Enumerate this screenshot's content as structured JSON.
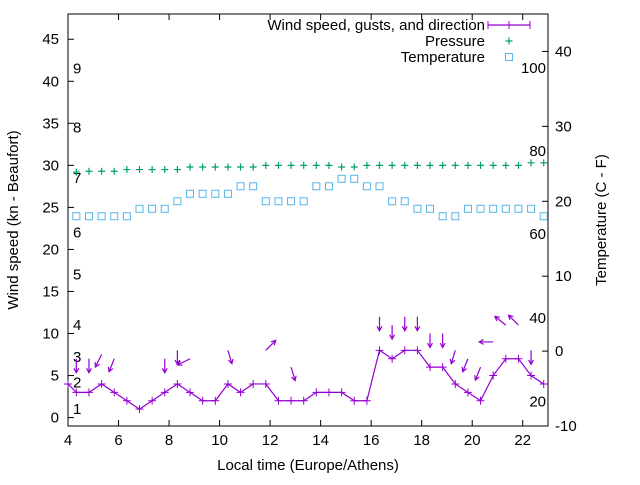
{
  "chart_data": {
    "type": "line",
    "xlabel": "Local time (Europe/Athens)",
    "ylabel": "Wind speed (kn - Beaufort)",
    "y2label": "Temperature (C - F)",
    "xlim": [
      4,
      23
    ],
    "ylim": [
      -1,
      48
    ],
    "y2lim": [
      -10,
      45
    ],
    "x_ticks": [
      4,
      6,
      8,
      10,
      12,
      14,
      16,
      18,
      20,
      22
    ],
    "y_ticks": [
      0,
      5,
      10,
      15,
      20,
      25,
      30,
      35,
      40,
      45
    ],
    "y2_ticks": [
      -10,
      0,
      10,
      20,
      30,
      40
    ],
    "beaufort_labels": [
      {
        "label": "1",
        "y": 1
      },
      {
        "label": "2",
        "y": 4.2
      },
      {
        "label": "3",
        "y": 7.2
      },
      {
        "label": "4",
        "y": 11
      },
      {
        "label": "5",
        "y": 17
      },
      {
        "label": "6",
        "y": 22
      },
      {
        "label": "7",
        "y": 28.5
      },
      {
        "label": "8",
        "y": 34.5
      },
      {
        "label": "9",
        "y": 41.5
      }
    ],
    "fahrenheit_labels": [
      {
        "label": "20",
        "y2": -6.7
      },
      {
        "label": "40",
        "y2": 4.4
      },
      {
        "label": "60",
        "y2": 15.6
      },
      {
        "label": "80",
        "y2": 26.7
      },
      {
        "label": "100",
        "y2": 37.8
      }
    ],
    "legend": {
      "position": "top-right",
      "entries": [
        "Wind speed, gusts, and direction",
        "Pressure",
        "Temperature"
      ]
    },
    "colors": {
      "wind": "#9400d3",
      "pressure": "#009e73",
      "temperature": "#56b4e9",
      "arrows": "#9400d3"
    },
    "series": [
      {
        "name": "Wind speed, gusts, and direction",
        "x": [
          4,
          4.33,
          4.83,
          5.33,
          5.83,
          6.33,
          6.83,
          7.33,
          7.83,
          8.33,
          8.83,
          9.33,
          9.83,
          10.33,
          10.83,
          11.33,
          11.83,
          12.33,
          12.83,
          13.33,
          13.83,
          14.33,
          14.83,
          15.33,
          15.83,
          16.33,
          16.83,
          17.33,
          17.83,
          18.33,
          18.83,
          19.33,
          19.83,
          20.33,
          20.83,
          21.33,
          21.83,
          22.33,
          22.83
        ],
        "values": [
          4,
          3,
          3,
          4,
          3,
          2,
          1,
          2,
          3,
          4,
          3,
          2,
          2,
          4,
          3,
          4,
          4,
          2,
          2,
          2,
          3,
          3,
          3,
          2,
          2,
          8,
          7,
          8,
          8,
          6,
          6,
          4,
          3,
          2,
          5,
          7,
          7,
          5,
          4
        ]
      },
      {
        "name": "Pressure",
        "x": [
          4.33,
          4.83,
          5.33,
          5.83,
          6.33,
          6.83,
          7.33,
          7.83,
          8.33,
          8.83,
          9.33,
          9.83,
          10.33,
          10.83,
          11.33,
          11.83,
          12.33,
          12.83,
          13.33,
          13.83,
          14.33,
          14.83,
          15.33,
          15.83,
          16.33,
          16.83,
          17.33,
          17.83,
          18.33,
          18.83,
          19.33,
          19.83,
          20.33,
          20.83,
          21.33,
          21.83,
          22.33,
          22.83
        ],
        "values": [
          29.2,
          29.3,
          29.3,
          29.3,
          29.5,
          29.5,
          29.5,
          29.5,
          29.5,
          29.8,
          29.8,
          29.8,
          29.8,
          29.8,
          29.8,
          30.0,
          30.0,
          30.0,
          30.0,
          30.0,
          30.0,
          29.8,
          29.8,
          30.0,
          30.0,
          30.0,
          30.0,
          30.0,
          30.0,
          30.0,
          30.0,
          30.0,
          30.0,
          30.0,
          30.0,
          30.0,
          30.3,
          30.3
        ]
      },
      {
        "name": "Temperature",
        "x": [
          4.33,
          4.83,
          5.33,
          5.83,
          6.33,
          6.83,
          7.33,
          7.83,
          8.33,
          8.83,
          9.33,
          9.83,
          10.33,
          10.83,
          11.33,
          11.83,
          12.33,
          12.83,
          13.33,
          13.83,
          14.33,
          14.83,
          15.33,
          15.83,
          16.33,
          16.83,
          17.33,
          17.83,
          18.33,
          18.83,
          19.33,
          19.83,
          20.33,
          20.83,
          21.33,
          21.83,
          22.33,
          22.83
        ],
        "values": [
          18,
          18,
          18,
          18,
          18,
          19,
          19,
          19,
          20,
          21,
          21,
          21,
          21,
          22,
          22,
          20,
          20,
          20,
          20,
          22,
          22,
          23,
          23,
          22,
          22,
          20,
          20,
          19,
          19,
          18,
          18,
          19,
          19,
          19,
          19,
          19,
          19,
          18
        ]
      }
    ],
    "wind_arrows": [
      {
        "x": 4.33,
        "y": 7,
        "dx": 0,
        "dy": -1
      },
      {
        "x": 4.83,
        "y": 7,
        "dx": 0,
        "dy": -1
      },
      {
        "x": 5.33,
        "y": 7.5,
        "dx": -0.5,
        "dy": -1
      },
      {
        "x": 5.83,
        "y": 7,
        "dx": -0.4,
        "dy": -1
      },
      {
        "x": 7.83,
        "y": 7,
        "dx": 0,
        "dy": -1
      },
      {
        "x": 8.33,
        "y": 8,
        "dx": 0,
        "dy": -1
      },
      {
        "x": 8.83,
        "y": 7,
        "dx": -1,
        "dy": -0.5
      },
      {
        "x": 10.33,
        "y": 8,
        "dx": 0.3,
        "dy": -1
      },
      {
        "x": 11.83,
        "y": 8,
        "dx": 1,
        "dy": 1
      },
      {
        "x": 12.83,
        "y": 6,
        "dx": 0.3,
        "dy": -1
      },
      {
        "x": 16.33,
        "y": 12,
        "dx": 0,
        "dy": -1
      },
      {
        "x": 16.83,
        "y": 11,
        "dx": 0,
        "dy": -1
      },
      {
        "x": 17.33,
        "y": 12,
        "dx": 0,
        "dy": -1
      },
      {
        "x": 17.83,
        "y": 12,
        "dx": 0,
        "dy": -1
      },
      {
        "x": 18.33,
        "y": 10,
        "dx": 0,
        "dy": -1
      },
      {
        "x": 18.83,
        "y": 10,
        "dx": 0,
        "dy": -1
      },
      {
        "x": 19.33,
        "y": 8,
        "dx": -0.3,
        "dy": -1
      },
      {
        "x": 19.83,
        "y": 7,
        "dx": -0.4,
        "dy": -1
      },
      {
        "x": 20.33,
        "y": 6,
        "dx": -0.4,
        "dy": -1
      },
      {
        "x": 20.83,
        "y": 9,
        "dx": -1,
        "dy": 0
      },
      {
        "x": 21.33,
        "y": 11,
        "dx": -1,
        "dy": 0.8
      },
      {
        "x": 21.83,
        "y": 11,
        "dx": -0.8,
        "dy": 0.8
      },
      {
        "x": 22.33,
        "y": 8,
        "dx": 0,
        "dy": -1
      }
    ]
  }
}
